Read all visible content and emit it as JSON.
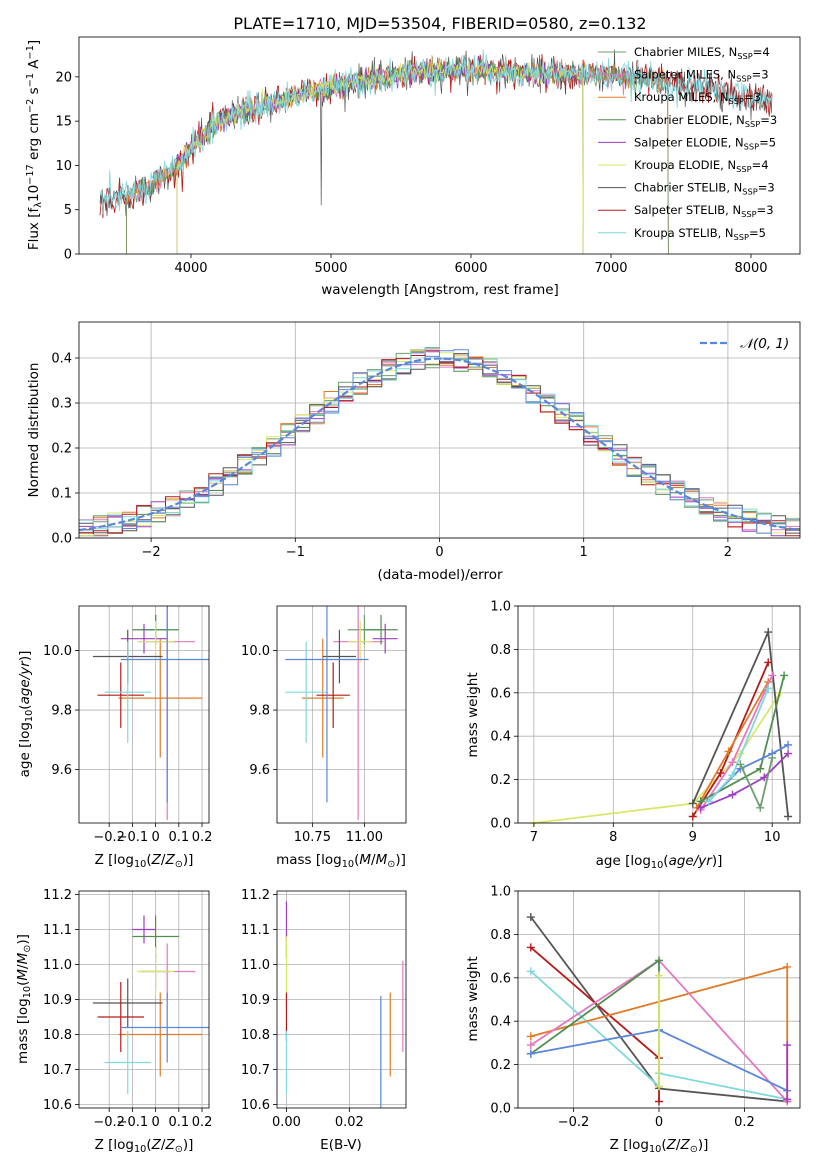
{
  "title": "PLATE=1710, MJD=53504, FIBERID=0580, z=0.132",
  "colors": {
    "Chabrier MILES": "#6d9f6d",
    "Salpeter MILES": "#e377c2",
    "Kroupa MILES": "#e07b28",
    "Chabrier ELODIE": "#4f8f4f",
    "Salpeter ELODIE": "#9e3fbf",
    "Kroupa ELODIE": "#d9e86a",
    "Chabrier STELIB": "#555555",
    "Salpeter STELIB": "#b51a1a",
    "Kroupa STELIB": "#7fd8dc",
    "blue": "#5b86db",
    "normal": "#5b86db"
  },
  "chart_data": [
    {
      "type": "line",
      "id": "spectrum",
      "xlabel": "wavelength [Angstrom, rest frame]",
      "ylabel": "Flux [f_λ 10^-17 erg cm^-2 s^-1 A^-1]",
      "xlim": [
        3200,
        8350
      ],
      "ylim": [
        0,
        24.5
      ],
      "xticks": [
        4000,
        5000,
        6000,
        7000,
        8000
      ],
      "yticks": [
        0,
        5,
        10,
        15,
        20
      ],
      "legend_position": "upper right",
      "legend": [
        "Chabrier MILES, N_SSP=4",
        "Salpeter MILES, N_SSP=3",
        "Kroupa MILES, N_SSP=3",
        "Chabrier ELODIE, N_SSP=3",
        "Salpeter ELODIE, N_SSP=5",
        "Kroupa ELODIE, N_SSP=4",
        "Chabrier STELIB, N_SSP=3",
        "Salpeter STELIB, N_SSP=3",
        "Kroupa STELIB, N_SSP=5"
      ],
      "continuum": {
        "x": [
          3350,
          3500,
          3700,
          3900,
          4000,
          4200,
          4400,
          4600,
          4800,
          5000,
          5200,
          5500,
          5800,
          6000,
          6300,
          6600,
          7000,
          7400,
          7800,
          8150
        ],
        "y": [
          6.0,
          6.5,
          7.5,
          9.8,
          12.0,
          15.0,
          16.3,
          17.0,
          18.2,
          18.8,
          19.5,
          20.3,
          20.7,
          20.9,
          20.5,
          20.4,
          20.2,
          19.3,
          18.3,
          17.2
        ]
      }
    },
    {
      "type": "bar",
      "id": "residual_histogram",
      "xlabel": "(data-model)/error",
      "ylabel": "Normed distribution",
      "xlim": [
        -2.5,
        2.5
      ],
      "ylim": [
        0,
        0.48
      ],
      "xticks": [
        -2,
        -1,
        0,
        1,
        2
      ],
      "yticks": [
        0.0,
        0.1,
        0.2,
        0.3,
        0.4
      ],
      "legend_position": "upper right",
      "normal_label": "𝒩(0, 1)",
      "bin_width": 0.1
    },
    {
      "type": "scatter",
      "id": "age_vs_Z",
      "xlabel": "Z [log10(Z/Z⊙)]",
      "ylabel": "age [log10(age/yr)]",
      "xlim": [
        -0.33,
        0.23
      ],
      "ylim": [
        9.42,
        10.15
      ],
      "xticks": [
        -0.2,
        -0.1,
        0.0,
        0.1,
        0.2
      ],
      "yticks": [
        9.6,
        9.8,
        10.0
      ],
      "points": [
        {
          "c": "Chabrier MILES",
          "x": 0.0,
          "y": 10.07,
          "xe": 0.06,
          "ye": 0.05
        },
        {
          "c": "Salpeter MILES",
          "x": 0.05,
          "y": 10.03,
          "xe": 0.12,
          "ye": 0.6
        },
        {
          "c": "Kroupa MILES",
          "x": 0.02,
          "y": 9.84,
          "xe": 0.18,
          "ye": 0.2
        },
        {
          "c": "Chabrier ELODIE",
          "x": 0.0,
          "y": 10.07,
          "xe": 0.1,
          "ye": 0.05
        },
        {
          "c": "Salpeter ELODIE",
          "x": -0.05,
          "y": 10.04,
          "xe": 0.1,
          "ye": 0.05
        },
        {
          "c": "Kroupa ELODIE",
          "x": 0.0,
          "y": 10.03,
          "xe": 0.08,
          "ye": 0.07
        },
        {
          "c": "Chabrier STELIB",
          "x": -0.12,
          "y": 9.98,
          "xe": 0.15,
          "ye": 0.09
        },
        {
          "c": "Salpeter STELIB",
          "x": -0.15,
          "y": 9.85,
          "xe": 0.1,
          "ye": 0.11
        },
        {
          "c": "Kroupa STELIB",
          "x": -0.12,
          "y": 9.86,
          "xe": 0.1,
          "ye": 0.17
        },
        {
          "c": "blue",
          "x": 0.05,
          "y": 9.97,
          "xe": 0.2,
          "ye": 0.48
        }
      ]
    },
    {
      "type": "scatter",
      "id": "age_vs_mass",
      "xlabel": "mass [log10(M/M⊙)]",
      "ylabel": "",
      "xlim": [
        10.58,
        11.2
      ],
      "ylim": [
        9.42,
        10.15
      ],
      "xticks": [
        10.75,
        11.0
      ],
      "yticks": [
        9.6,
        9.8,
        10.0
      ],
      "points": [
        {
          "c": "Chabrier MILES",
          "x": 11.0,
          "y": 10.07,
          "xe": 0.08,
          "ye": 0.05
        },
        {
          "c": "Salpeter MILES",
          "x": 10.97,
          "y": 10.03,
          "xe": 0.12,
          "ye": 0.6
        },
        {
          "c": "Kroupa MILES",
          "x": 10.8,
          "y": 9.84,
          "xe": 0.1,
          "ye": 0.2
        },
        {
          "c": "Chabrier ELODIE",
          "x": 11.08,
          "y": 10.07,
          "xe": 0.08,
          "ye": 0.05
        },
        {
          "c": "Salpeter ELODIE",
          "x": 11.1,
          "y": 10.04,
          "xe": 0.06,
          "ye": 0.05
        },
        {
          "c": "Kroupa ELODIE",
          "x": 10.98,
          "y": 10.03,
          "xe": 0.06,
          "ye": 0.07
        },
        {
          "c": "Chabrier STELIB",
          "x": 10.88,
          "y": 9.98,
          "xe": 0.08,
          "ye": 0.09
        },
        {
          "c": "Salpeter STELIB",
          "x": 10.85,
          "y": 9.85,
          "xe": 0.08,
          "ye": 0.11
        },
        {
          "c": "Kroupa STELIB",
          "x": 10.72,
          "y": 9.86,
          "xe": 0.1,
          "ye": 0.17
        },
        {
          "c": "blue",
          "x": 10.82,
          "y": 9.97,
          "xe": 0.2,
          "ye": 0.48
        }
      ]
    },
    {
      "type": "line",
      "id": "weight_vs_age",
      "xlabel": "age [log10(age/yr)]",
      "ylabel": "mass weight",
      "xlim": [
        6.8,
        10.35
      ],
      "ylim": [
        0,
        1.0
      ],
      "xticks": [
        7,
        8,
        9,
        10
      ],
      "yticks": [
        0.0,
        0.2,
        0.4,
        0.6,
        0.8,
        1.0
      ],
      "series": [
        {
          "c": "Kroupa ELODIE",
          "x": [
            7.0,
            9.0,
            9.6,
            10.1
          ],
          "y": [
            0.0,
            0.09,
            0.32,
            0.6
          ]
        },
        {
          "c": "Chabrier STELIB",
          "x": [
            9.0,
            9.95,
            10.2
          ],
          "y": [
            0.09,
            0.88,
            0.03
          ]
        },
        {
          "c": "Salpeter STELIB",
          "x": [
            9.0,
            9.35,
            9.95
          ],
          "y": [
            0.03,
            0.23,
            0.74
          ]
        },
        {
          "c": "Kroupa MILES",
          "x": [
            9.05,
            9.45,
            9.95
          ],
          "y": [
            0.07,
            0.33,
            0.65
          ]
        },
        {
          "c": "Salpeter MILES",
          "x": [
            9.1,
            9.5,
            10.0
          ],
          "y": [
            0.06,
            0.28,
            0.68
          ]
        },
        {
          "c": "Chabrier ELODIE",
          "x": [
            9.1,
            9.85,
            10.15
          ],
          "y": [
            0.1,
            0.25,
            0.68
          ]
        },
        {
          "c": "Salpeter ELODIE",
          "x": [
            9.1,
            9.5,
            9.9,
            10.2
          ],
          "y": [
            0.07,
            0.13,
            0.21,
            0.32
          ]
        },
        {
          "c": "blue",
          "x": [
            9.2,
            9.6,
            10.0,
            10.2
          ],
          "y": [
            0.1,
            0.25,
            0.32,
            0.36
          ]
        },
        {
          "c": "Kroupa STELIB",
          "x": [
            9.2,
            9.5,
            9.95
          ],
          "y": [
            0.1,
            0.22,
            0.62
          ]
        },
        {
          "c": "Chabrier MILES",
          "x": [
            9.6,
            9.85,
            10.0
          ],
          "y": [
            0.27,
            0.07,
            0.3
          ]
        }
      ]
    },
    {
      "type": "scatter",
      "id": "mass_vs_Z",
      "xlabel": "Z [log10(Z/Z⊙)]",
      "ylabel": "mass [log10(M/M⊙)]",
      "xlim": [
        -0.33,
        0.23
      ],
      "ylim": [
        10.59,
        11.21
      ],
      "xticks": [
        -0.2,
        -0.1,
        0.0,
        0.1,
        0.2
      ],
      "yticks": [
        10.6,
        10.7,
        10.8,
        10.9,
        11.0,
        11.1,
        11.2
      ],
      "points": [
        {
          "c": "Chabrier MILES",
          "x": 0.0,
          "y": 10.98,
          "xe": 0.06,
          "ye": 0.05
        },
        {
          "c": "Salpeter MILES",
          "x": 0.05,
          "y": 10.98,
          "xe": 0.12,
          "ye": 0.08
        },
        {
          "c": "Kroupa MILES",
          "x": 0.02,
          "y": 10.8,
          "xe": 0.18,
          "ye": 0.12
        },
        {
          "c": "Chabrier ELODIE",
          "x": 0.0,
          "y": 11.08,
          "xe": 0.1,
          "ye": 0.06
        },
        {
          "c": "Salpeter ELODIE",
          "x": -0.05,
          "y": 11.1,
          "xe": 0.05,
          "ye": 0.04
        },
        {
          "c": "Kroupa ELODIE",
          "x": 0.0,
          "y": 10.98,
          "xe": 0.08,
          "ye": 0.07
        },
        {
          "c": "Chabrier STELIB",
          "x": -0.12,
          "y": 10.89,
          "xe": 0.15,
          "ye": 0.07
        },
        {
          "c": "Salpeter STELIB",
          "x": -0.15,
          "y": 10.85,
          "xe": 0.1,
          "ye": 0.1
        },
        {
          "c": "Kroupa STELIB",
          "x": -0.12,
          "y": 10.72,
          "xe": 0.1,
          "ye": 0.09
        },
        {
          "c": "blue",
          "x": 0.05,
          "y": 10.82,
          "xe": 0.2,
          "ye": 0.1
        }
      ]
    },
    {
      "type": "scatter",
      "id": "mass_vs_EBV",
      "xlabel": "E(B-V)",
      "ylabel": "",
      "xlim": [
        -0.003,
        0.038
      ],
      "ylim": [
        10.59,
        11.21
      ],
      "xticks": [
        0.0,
        0.02
      ],
      "yticks": [
        10.6,
        10.7,
        10.8,
        10.9,
        11.0,
        11.1,
        11.2
      ],
      "points": [
        {
          "c": "Salpeter ELODIE",
          "x": 0.0,
          "y": 11.1,
          "xe": 0,
          "ye": 0.08
        },
        {
          "c": "Kroupa ELODIE",
          "x": 0.0,
          "y": 10.98,
          "xe": 0,
          "ye": 0.1
        },
        {
          "c": "Salpeter STELIB",
          "x": 0.0,
          "y": 10.85,
          "xe": 0,
          "ye": 0.07
        },
        {
          "c": "Kroupa STELIB",
          "x": 0.0,
          "y": 10.72,
          "xe": 0,
          "ye": 0.09
        },
        {
          "c": "blue",
          "x": 0.03,
          "y": 10.75,
          "xe": 0,
          "ye": 0.16
        },
        {
          "c": "Kroupa MILES",
          "x": 0.033,
          "y": 10.8,
          "xe": 0,
          "ye": 0.12
        },
        {
          "c": "Salpeter MILES",
          "x": 0.037,
          "y": 10.88,
          "xe": 0,
          "ye": 0.13
        }
      ]
    },
    {
      "type": "line",
      "id": "weight_vs_Z",
      "xlabel": "Z [log10(Z/Z⊙)]",
      "ylabel": "mass weight",
      "xlim": [
        -0.33,
        0.33
      ],
      "ylim": [
        0,
        1.0
      ],
      "xticks": [
        -0.2,
        0.0,
        0.2
      ],
      "yticks": [
        0.0,
        0.2,
        0.4,
        0.6,
        0.8,
        1.0
      ],
      "series": [
        {
          "c": "Chabrier STELIB",
          "x": [
            -0.3,
            0.0,
            0.3
          ],
          "y": [
            0.88,
            0.09,
            0.03
          ]
        },
        {
          "c": "Salpeter STELIB",
          "x": [
            -0.3,
            0.0,
            0.0
          ],
          "y": [
            0.74,
            0.23,
            0.03
          ]
        },
        {
          "c": "Kroupa STELIB",
          "x": [
            -0.3,
            0.0,
            0.0,
            0.3
          ],
          "y": [
            0.63,
            0.1,
            0.16,
            0.04
          ]
        },
        {
          "c": "Kroupa MILES",
          "x": [
            -0.3,
            0.3,
            0.3
          ],
          "y": [
            0.33,
            0.65,
            0.03
          ]
        },
        {
          "c": "Salpeter MILES",
          "x": [
            -0.3,
            0.0,
            0.3
          ],
          "y": [
            0.29,
            0.68,
            0.03
          ]
        },
        {
          "c": "Chabrier ELODIE",
          "x": [
            -0.3,
            0.0,
            0.0
          ],
          "y": [
            0.25,
            0.68,
            0.1
          ]
        },
        {
          "c": "blue",
          "x": [
            -0.3,
            0.0,
            0.3
          ],
          "y": [
            0.25,
            0.36,
            0.08
          ]
        },
        {
          "c": "Kroupa ELODIE",
          "x": [
            0.0,
            0.0
          ],
          "y": [
            0.1,
            0.61
          ]
        },
        {
          "c": "Salpeter ELODIE",
          "x": [
            0.3,
            0.3
          ],
          "y": [
            0.29,
            0.04
          ]
        }
      ]
    }
  ]
}
